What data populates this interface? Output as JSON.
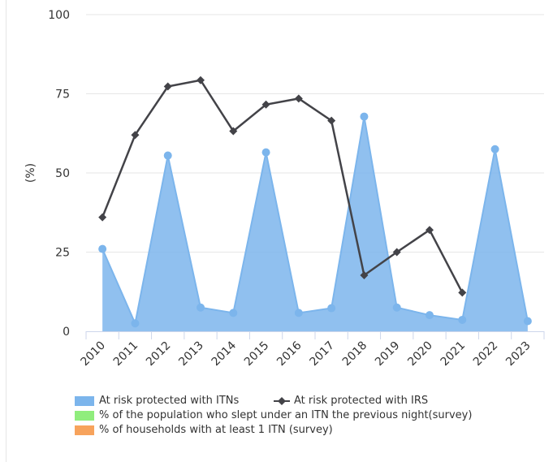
{
  "chart_data": {
    "type": "line",
    "title": "",
    "xlabel": "",
    "ylabel": "(%)",
    "ylim": [
      0,
      100
    ],
    "yticks": [
      0,
      25,
      50,
      75,
      100
    ],
    "categories": [
      "2010",
      "2011",
      "2012",
      "2013",
      "2014",
      "2015",
      "2016",
      "2017",
      "2018",
      "2019",
      "2020",
      "2021",
      "2022",
      "2023"
    ],
    "series": [
      {
        "name": "At risk protected with ITNs",
        "kind": "area",
        "color": "#7cb5ec",
        "values": [
          26,
          2.5,
          55.5,
          7.5,
          5.8,
          56.5,
          5.8,
          7.3,
          67.8,
          7.5,
          5.1,
          3.6,
          57.5,
          3.2
        ]
      },
      {
        "name": "At risk protected with IRS",
        "kind": "line",
        "color": "#434348",
        "values": [
          36,
          62,
          77.3,
          79.3,
          63.2,
          71.6,
          73.5,
          66.5,
          17.7,
          25,
          32,
          12.2,
          null,
          null
        ]
      }
    ],
    "legend": [
      {
        "label": "At risk protected with ITNs",
        "color": "#7cb5ec",
        "type": "area"
      },
      {
        "label": "At risk protected with IRS",
        "color": "#434348",
        "type": "line"
      },
      {
        "label": "% of the population who slept under an ITN the previous night(survey)",
        "color": "#90ed7d",
        "type": "area"
      },
      {
        "label": "% of households with at least 1 ITN (survey)",
        "color": "#f7a35c",
        "type": "area"
      }
    ],
    "legend_position": "bottom-left",
    "grid": true
  }
}
